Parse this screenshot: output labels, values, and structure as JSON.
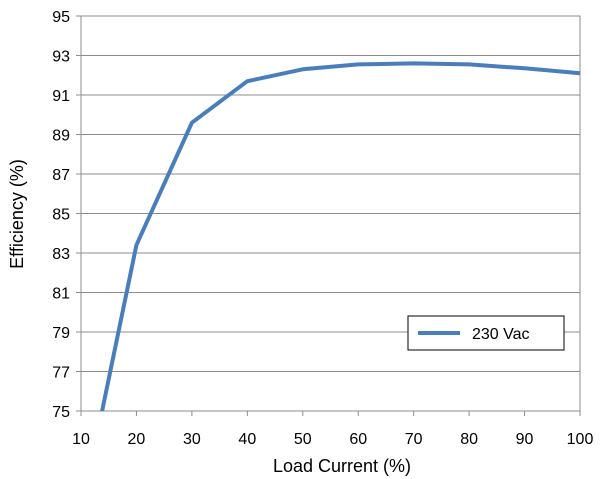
{
  "chart_data": {
    "type": "line",
    "title": "",
    "xlabel": "Load Current  (%)",
    "ylabel": "Efficiency  (%)",
    "xlim": [
      10,
      100
    ],
    "ylim": [
      75,
      95
    ],
    "x_ticks": [
      "10",
      "20",
      "30",
      "40",
      "50",
      "60",
      "70",
      "80",
      "90",
      "100"
    ],
    "y_ticks": [
      "75",
      "77",
      "79",
      "81",
      "83",
      "85",
      "87",
      "89",
      "91",
      "93",
      "95"
    ],
    "grid": "horizontal",
    "legend_position": "lower-right",
    "series": [
      {
        "name": "230 Vac",
        "color": "#4a7ebb",
        "x": [
          13.8,
          20,
          30,
          40,
          50,
          60,
          70,
          80,
          90,
          100
        ],
        "y": [
          75.0,
          83.4,
          89.6,
          91.7,
          92.3,
          92.55,
          92.6,
          92.55,
          92.35,
          92.1
        ]
      }
    ]
  }
}
